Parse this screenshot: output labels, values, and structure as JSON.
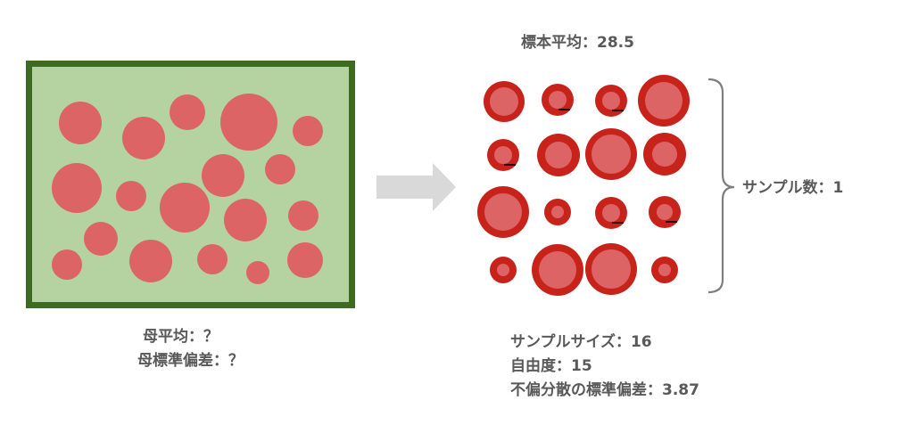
{
  "population": {
    "mean_label": "母平均：？",
    "std_label": "母標準偏差：？",
    "colors": {
      "border": "#3e6b22",
      "fill": "#b4d3a1",
      "circle": "#dd6464"
    }
  },
  "sample": {
    "mean_label": "標本平均：28.5",
    "count_label": "サンプル数：1",
    "size_label": "サンプルサイズ：16",
    "dof_label": "自由度：15",
    "std_label": "不偏分散の標準偏差：3.87",
    "colors": {
      "ring": "#c8231a",
      "inner": "#dd6464"
    }
  },
  "arrow": {
    "color": "#d9d9d9",
    "icon": "right-arrow-icon"
  },
  "brace": {
    "color": "#7f7f7f",
    "icon": "right-curly-brace-icon"
  }
}
